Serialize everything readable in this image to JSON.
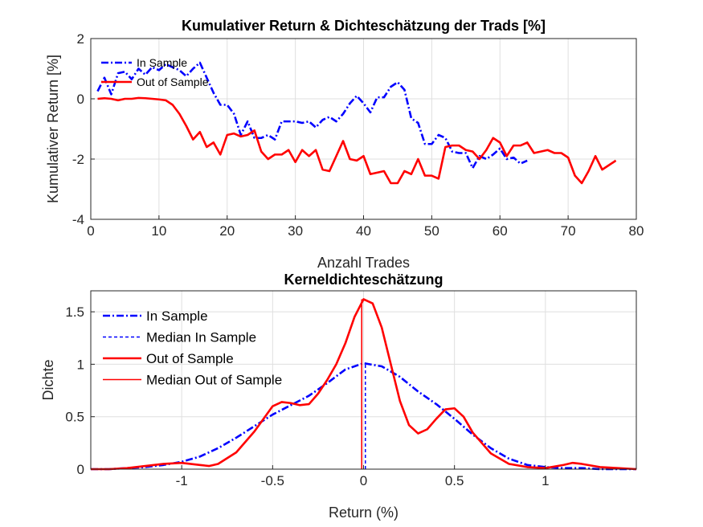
{
  "chart_data": [
    {
      "type": "line",
      "title": "Kumulativer Return & Dichteschätzung der Trads [%]",
      "xlabel": "Anzahl Trades",
      "ylabel": "Kumulativer Return [%]",
      "xlim": [
        0,
        80
      ],
      "ylim": [
        -4,
        2
      ],
      "xticks": [
        0,
        10,
        20,
        30,
        40,
        50,
        60,
        70,
        80
      ],
      "yticks": [
        -4,
        -2,
        0,
        2
      ],
      "grid": true,
      "legend_position": "top-left",
      "series": [
        {
          "name": "In Sample",
          "color": "#0000ff",
          "style": "dash-dot",
          "x": [
            1,
            2,
            3,
            4,
            5,
            6,
            7,
            8,
            9,
            10,
            11,
            12,
            13,
            14,
            15,
            16,
            17,
            18,
            19,
            20,
            21,
            22,
            23,
            24,
            25,
            26,
            27,
            28,
            29,
            30,
            31,
            32,
            33,
            34,
            35,
            36,
            37,
            38,
            39,
            40,
            41,
            42,
            43,
            44,
            45,
            46,
            47,
            48,
            49,
            50,
            51,
            52,
            53,
            54,
            55,
            56,
            57,
            58,
            59,
            60,
            61,
            62,
            63,
            64
          ],
          "y": [
            0.25,
            0.7,
            0.15,
            0.85,
            0.9,
            0.65,
            1.0,
            0.8,
            1.05,
            0.95,
            1.15,
            1.05,
            0.95,
            0.75,
            1.0,
            1.2,
            0.7,
            0.2,
            -0.2,
            -0.2,
            -0.5,
            -1.2,
            -0.75,
            -1.3,
            -1.3,
            -1.2,
            -1.35,
            -0.75,
            -0.75,
            -0.75,
            -0.8,
            -0.75,
            -0.95,
            -0.7,
            -0.6,
            -0.75,
            -0.5,
            -0.15,
            0.1,
            -0.15,
            -0.45,
            0.05,
            0.05,
            0.4,
            0.55,
            0.3,
            -0.65,
            -0.8,
            -1.5,
            -1.5,
            -1.2,
            -1.3,
            -1.75,
            -1.8,
            -1.8,
            -2.3,
            -1.9,
            -2.0,
            -1.85,
            -1.65,
            -2.0,
            -1.95,
            -2.15,
            -2.05
          ]
        },
        {
          "name": "Out of Sample",
          "color": "#ff0000",
          "style": "solid",
          "x": [
            1,
            2,
            3,
            4,
            5,
            6,
            7,
            8,
            9,
            10,
            11,
            12,
            13,
            14,
            15,
            16,
            17,
            18,
            19,
            20,
            21,
            22,
            23,
            24,
            25,
            26,
            27,
            28,
            29,
            30,
            31,
            32,
            33,
            34,
            35,
            36,
            37,
            38,
            39,
            40,
            41,
            42,
            43,
            44,
            45,
            46,
            47,
            48,
            49,
            50,
            51,
            52,
            53,
            54,
            55,
            56,
            57,
            58,
            59,
            60,
            61,
            62,
            63,
            64,
            65,
            66,
            67,
            68,
            69,
            70,
            71,
            72,
            73,
            74,
            75,
            76,
            77
          ],
          "y": [
            0.0,
            0.02,
            0.0,
            -0.05,
            0.0,
            0.0,
            0.03,
            0.02,
            0.0,
            -0.02,
            -0.05,
            -0.2,
            -0.5,
            -0.9,
            -1.35,
            -1.1,
            -1.6,
            -1.45,
            -1.85,
            -1.2,
            -1.15,
            -1.25,
            -1.2,
            -1.05,
            -1.75,
            -2.0,
            -1.85,
            -1.85,
            -1.7,
            -2.1,
            -1.7,
            -1.9,
            -1.7,
            -2.35,
            -2.4,
            -1.9,
            -1.4,
            -2.0,
            -2.05,
            -1.9,
            -2.5,
            -2.45,
            -2.4,
            -2.8,
            -2.8,
            -2.4,
            -2.5,
            -2.0,
            -2.55,
            -2.55,
            -2.65,
            -1.6,
            -1.55,
            -1.55,
            -1.7,
            -1.75,
            -2.0,
            -1.7,
            -1.3,
            -1.45,
            -1.9,
            -1.55,
            -1.55,
            -1.45,
            -1.8,
            -1.75,
            -1.7,
            -1.8,
            -1.8,
            -1.95,
            -2.55,
            -2.8,
            -2.4,
            -1.9,
            -2.35,
            -2.2,
            -2.05
          ]
        }
      ]
    },
    {
      "type": "line",
      "title": "Kerneldichteschätzung",
      "xlabel": "Return (%)",
      "ylabel": "Dichte",
      "xlim": [
        -1.5,
        1.5
      ],
      "ylim": [
        0,
        1.7
      ],
      "xticks": [
        -1,
        -0.5,
        0,
        0.5,
        1
      ],
      "yticks": [
        0,
        0.5,
        1,
        1.5
      ],
      "grid": true,
      "legend_position": "top-left",
      "series": [
        {
          "name": "In Sample",
          "color": "#0000ff",
          "style": "dash-dot",
          "x": [
            -1.5,
            -1.4,
            -1.3,
            -1.2,
            -1.1,
            -1.0,
            -0.9,
            -0.8,
            -0.7,
            -0.6,
            -0.5,
            -0.4,
            -0.3,
            -0.2,
            -0.1,
            0.0,
            0.1,
            0.2,
            0.3,
            0.4,
            0.5,
            0.6,
            0.7,
            0.8,
            0.9,
            1.0,
            1.1,
            1.2,
            1.3,
            1.4,
            1.5
          ],
          "y": [
            0.0,
            0.0,
            0.01,
            0.02,
            0.04,
            0.07,
            0.12,
            0.2,
            0.3,
            0.41,
            0.52,
            0.61,
            0.7,
            0.82,
            0.95,
            1.01,
            0.98,
            0.88,
            0.74,
            0.62,
            0.48,
            0.33,
            0.2,
            0.1,
            0.04,
            0.02,
            0.01,
            0.01,
            0.0,
            0.0,
            0.0
          ]
        },
        {
          "name": "Median In Sample",
          "color": "#0000ff",
          "style": "dashed",
          "x": [
            0.01,
            0.01
          ],
          "y": [
            0,
            1.01
          ]
        },
        {
          "name": "Out of Sample",
          "color": "#ff0000",
          "style": "solid",
          "x": [
            -1.5,
            -1.4,
            -1.3,
            -1.2,
            -1.1,
            -1.0,
            -0.9,
            -0.85,
            -0.8,
            -0.7,
            -0.6,
            -0.5,
            -0.45,
            -0.4,
            -0.35,
            -0.3,
            -0.25,
            -0.2,
            -0.15,
            -0.1,
            -0.05,
            0.0,
            0.05,
            0.1,
            0.15,
            0.2,
            0.25,
            0.3,
            0.35,
            0.4,
            0.45,
            0.5,
            0.55,
            0.6,
            0.7,
            0.8,
            0.9,
            1.0,
            1.1,
            1.15,
            1.2,
            1.3,
            1.4,
            1.5
          ],
          "y": [
            0.0,
            0.0,
            0.01,
            0.03,
            0.05,
            0.06,
            0.04,
            0.03,
            0.05,
            0.16,
            0.36,
            0.6,
            0.64,
            0.63,
            0.61,
            0.62,
            0.72,
            0.85,
            1.0,
            1.2,
            1.45,
            1.62,
            1.58,
            1.35,
            1.0,
            0.65,
            0.42,
            0.34,
            0.38,
            0.48,
            0.57,
            0.58,
            0.5,
            0.35,
            0.15,
            0.05,
            0.02,
            0.01,
            0.04,
            0.06,
            0.05,
            0.02,
            0.01,
            0.0
          ]
        },
        {
          "name": "Median Out of Sample",
          "color": "#ff0000",
          "style": "solid",
          "x": [
            -0.01,
            -0.01
          ],
          "y": [
            0,
            1.62
          ]
        }
      ]
    }
  ]
}
